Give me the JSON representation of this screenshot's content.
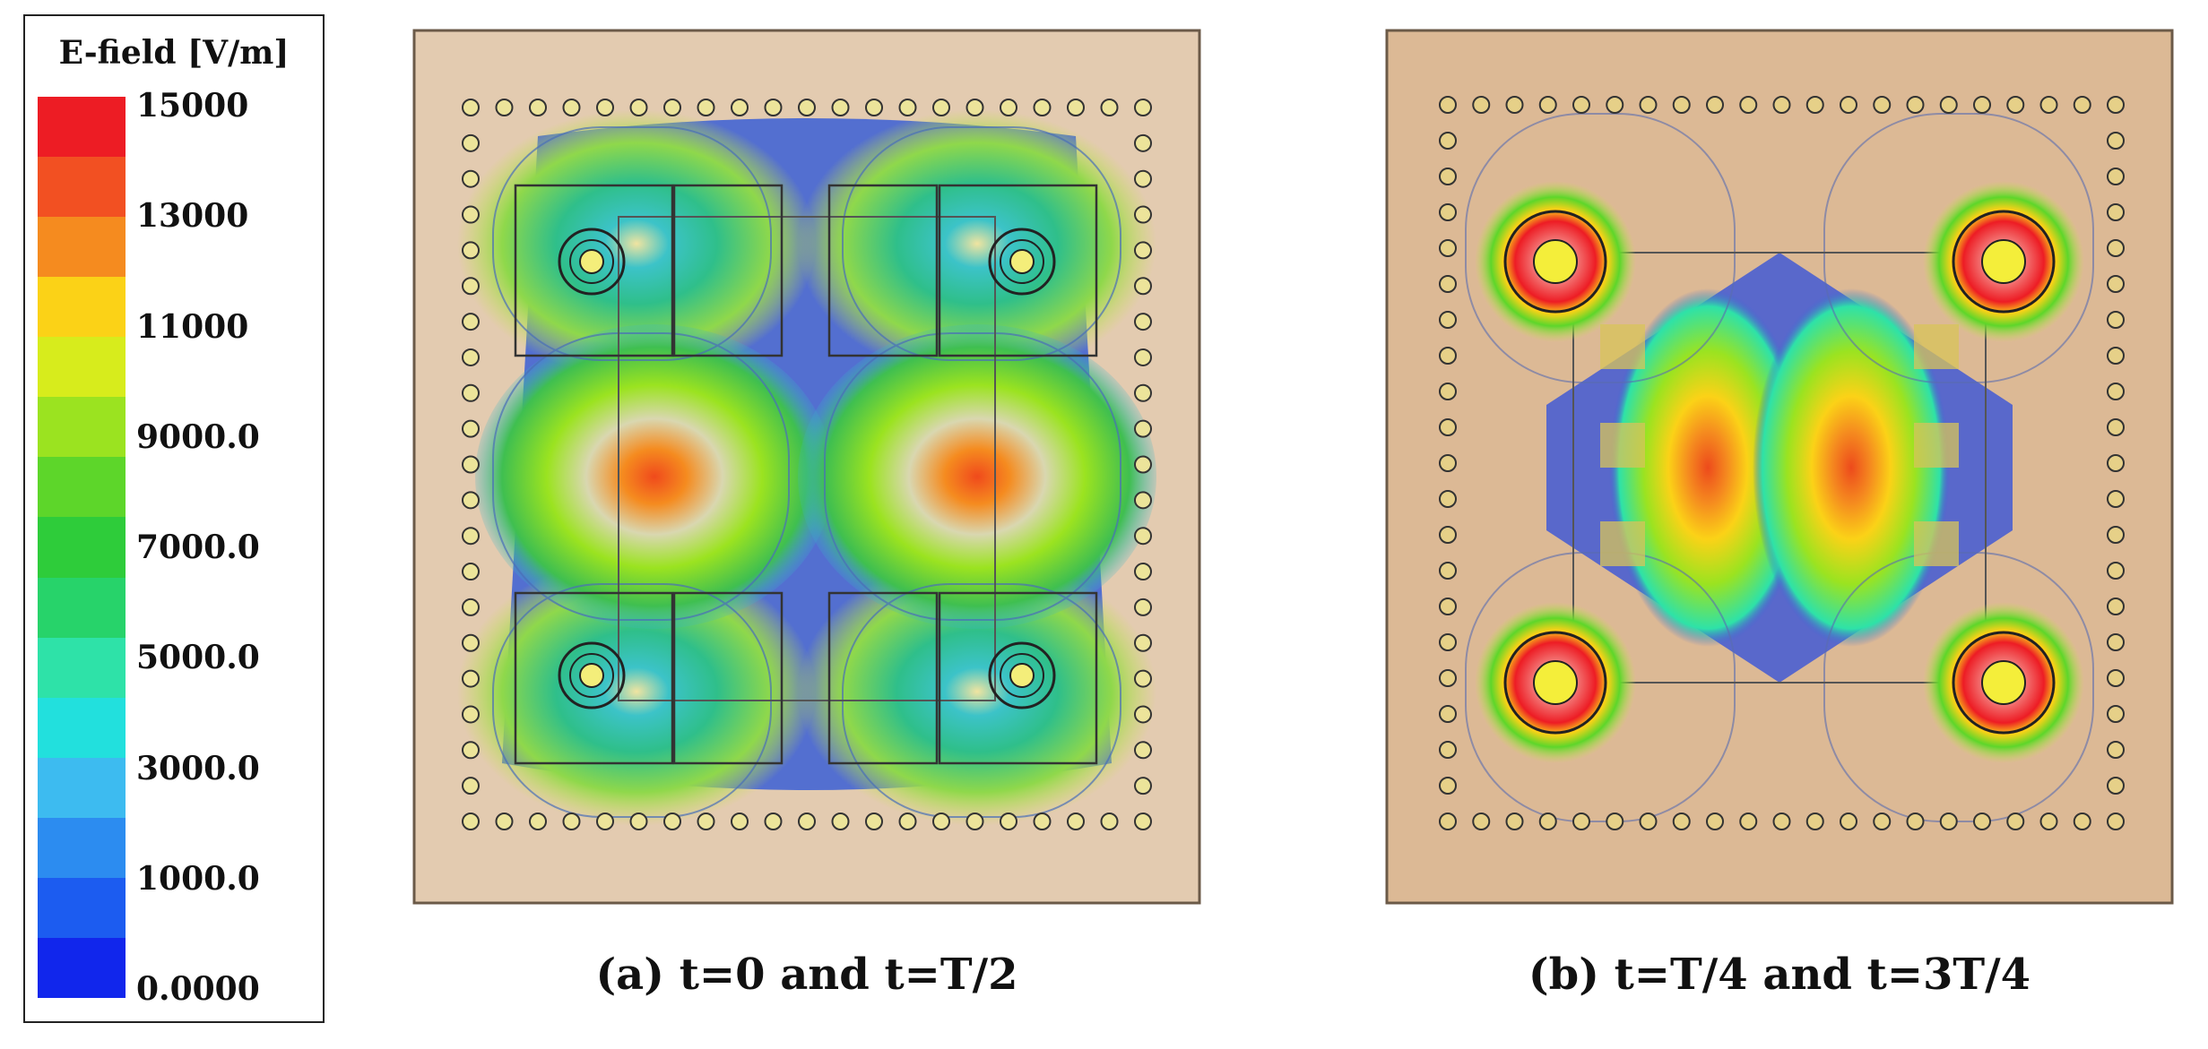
{
  "legend": {
    "title": "E-field [V/m]",
    "ticks": [
      "15000",
      "13000",
      "11000",
      "9000.0",
      "7000.0",
      "5000.0",
      "3000.0",
      "1000.0",
      "0.0000"
    ],
    "colors": [
      "#ed1c24",
      "#f25022",
      "#f58b1f",
      "#fbd217",
      "#d7ec1c",
      "#9be320",
      "#5dd62a",
      "#2ecc3a",
      "#27d36a",
      "#2ee2a8",
      "#22e0dd",
      "#3dbbf0",
      "#2c8cf0",
      "#1c5cf0",
      "#1126ec"
    ]
  },
  "panels": [
    {
      "caption": "(a) t=0 and t=T/2"
    },
    {
      "caption": "(b) t=T/4 and t=3T/4"
    }
  ]
}
